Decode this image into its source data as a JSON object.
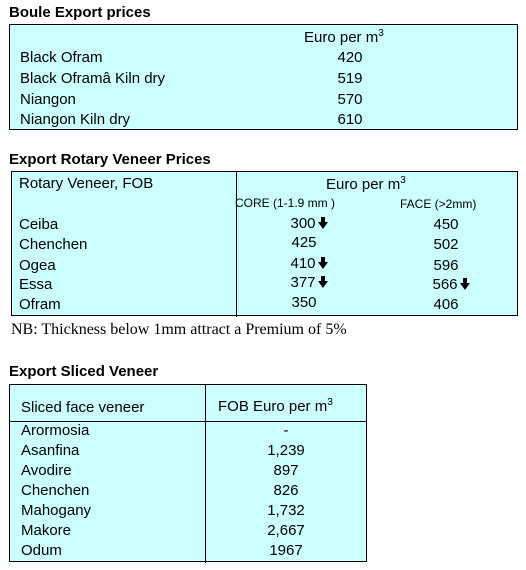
{
  "boule": {
    "title": "Boule Export prices",
    "header": "Euro per m",
    "header_sup": "3",
    "rows": [
      {
        "name": "Black Ofram",
        "price": "420"
      },
      {
        "name": "Black Oframâ Kiln dry",
        "price": "519"
      },
      {
        "name": "Niangon",
        "price": "570"
      },
      {
        "name": "Niangon Kiln dry",
        "price": "610"
      }
    ]
  },
  "rotary": {
    "title": "Export Rotary Veneer Prices",
    "col_label": "Rotary Veneer,  FOB",
    "header": "Euro  per m",
    "header_sup": "3",
    "core_label": "CORE (1-1.9 mm )",
    "face_label": "FACE (>2mm)",
    "rows": [
      {
        "name": "Ceiba",
        "core": "300",
        "core_down": true,
        "face": "450",
        "face_down": false
      },
      {
        "name": "Chenchen",
        "core": "425",
        "core_down": false,
        "face": "502",
        "face_down": false
      },
      {
        "name": "Ogea",
        "core": "410",
        "core_down": true,
        "face": "596",
        "face_down": false
      },
      {
        "name": "Essa",
        "core": "377",
        "core_down": true,
        "face": "566",
        "face_down": true
      },
      {
        "name": "Ofram",
        "core": "350",
        "core_down": false,
        "face": "406",
        "face_down": false
      }
    ],
    "note": "NB: Thickness below 1mm attract a Premium of 5%"
  },
  "sliced": {
    "title": "Export Sliced Veneer",
    "col_label": "Sliced face veneer",
    "header": "FOB Euro per m",
    "header_sup": "3",
    "rows": [
      {
        "name": "Arormosia",
        "price": "-"
      },
      {
        "name": "Asanfina",
        "price": "1,239"
      },
      {
        "name": "Avodire",
        "price": "897"
      },
      {
        "name": "Chenchen",
        "price": "826"
      },
      {
        "name": "Mahogany",
        "price": "1,732"
      },
      {
        "name": "Makore",
        "price": "2,667"
      },
      {
        "name": "Odum",
        "price": "1967"
      }
    ]
  }
}
